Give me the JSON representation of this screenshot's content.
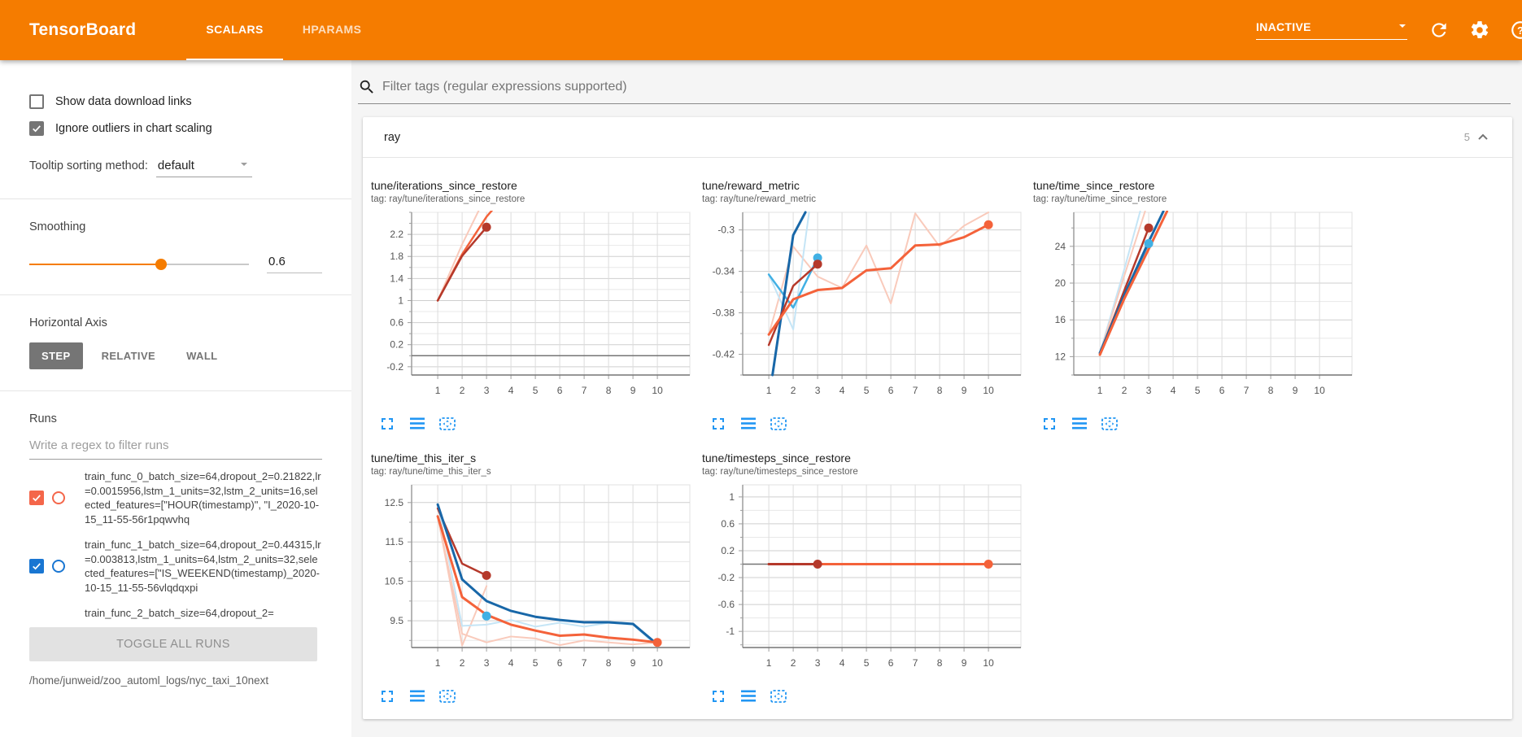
{
  "header": {
    "brand": "TensorBoard",
    "tabs": [
      {
        "label": "SCALARS",
        "active": true
      },
      {
        "label": "HPARAMS",
        "active": false
      }
    ],
    "status": "INACTIVE",
    "icons": [
      "caret-down-icon",
      "refresh-icon",
      "settings-icon",
      "help-icon"
    ],
    "colors": {
      "bar": "#f57c00",
      "active_tab": "#ffffff"
    }
  },
  "sidebar": {
    "checkboxes": [
      {
        "label": "Show data download links",
        "checked": false
      },
      {
        "label": "Ignore outliers in chart scaling",
        "checked": true
      }
    ],
    "tooltip_sort": {
      "label": "Tooltip sorting method:",
      "value": "default"
    },
    "smoothing": {
      "label": "Smoothing",
      "value": "0.6",
      "percent": 60
    },
    "horizontal_axis": {
      "label": "Horizontal Axis",
      "options": [
        "STEP",
        "RELATIVE",
        "WALL"
      ],
      "selected": "STEP"
    },
    "runs": {
      "label": "Runs",
      "filter_placeholder": "Write a regex to filter runs",
      "items": [
        {
          "color": "#f4664a",
          "checked": true,
          "partial": false,
          "text": "train_func_0_batch_size=64,dropout_2=0.21822,lr=0.0015956,lstm_1_units=32,lstm_2_units=16,selected_features=[\"HOUR(timestamp)\", \"I_2020-10-15_11-55-56r1pqwvhq"
        },
        {
          "color": "#1976d2",
          "checked": true,
          "partial": false,
          "text": "train_func_1_batch_size=64,dropout_2=0.44315,lr=0.003813,lstm_1_units=64,lstm_2_units=32,selected_features=[\"IS_WEEKEND(timestamp)_2020-10-15_11-55-56vlqdqxpi"
        },
        {
          "color": "#9e9e9e",
          "checked": false,
          "partial": true,
          "text": "train_func_2_batch_size=64,dropout_2="
        }
      ],
      "toggle_all_label": "TOGGLE ALL RUNS",
      "log_path": "/home/junweid/zoo_automl_logs/nyc_taxi_10next"
    }
  },
  "main": {
    "filter_placeholder": "Filter tags (regular expressions supported)",
    "section": {
      "title": "ray",
      "count": "5"
    },
    "chart_action_icons": [
      "fullscreen-icon",
      "flush-lines-icon",
      "fit-data-icon"
    ],
    "chart_icon_color": "#2196f3"
  },
  "chart_data": [
    {
      "type": "line",
      "title": "tune/iterations_since_restore",
      "tag": "tag: ray/tune/iterations_since_restore",
      "xlim": [
        -0.07,
        11.33
      ],
      "xticks": [
        1,
        2,
        3,
        4,
        5,
        6,
        7,
        8,
        9,
        10
      ],
      "ylim": [
        -0.35,
        2.6
      ],
      "yticks": [
        2.2,
        1.8,
        1.4,
        1,
        0.6,
        0.2,
        -0.2
      ],
      "y_minor": 0.2,
      "zero_line": 0,
      "series": [
        {
          "name": "unsmoothed",
          "color": "#f9cabb",
          "width": 2,
          "points": [
            [
              1,
              1
            ],
            [
              2,
              2.02
            ],
            [
              2.7,
              2.65
            ]
          ]
        },
        {
          "name": "train_func_0 (10 it)",
          "color": "#f4623a",
          "width": 2.5,
          "points": [
            [
              1,
              1
            ],
            [
              2,
              1.84
            ],
            [
              3,
              2.52
            ],
            [
              3.35,
              2.7
            ]
          ]
        },
        {
          "name": "train_func_0 (3 it)",
          "color": "#b5392b",
          "width": 2.5,
          "points": [
            [
              1,
              1
            ],
            [
              2,
              1.81
            ],
            [
              3,
              2.33
            ]
          ]
        }
      ],
      "dots": [
        {
          "x": 3,
          "y": 2.33,
          "color": "#b5392b"
        }
      ]
    },
    {
      "type": "line",
      "title": "tune/reward_metric",
      "tag": "tag: ray/tune/reward_metric",
      "xlim": [
        -0.07,
        11.33
      ],
      "xticks": [
        1,
        2,
        3,
        4,
        5,
        6,
        7,
        8,
        9,
        10
      ],
      "ylim": [
        -0.44,
        -0.283
      ],
      "yticks": [
        -0.3,
        -0.34,
        -0.38,
        -0.42
      ],
      "y_minor": 0.02,
      "series": [
        {
          "name": "unsmoothed orange",
          "color": "#f9cabb",
          "width": 2,
          "points": [
            [
              1,
              -0.401
            ],
            [
              2,
              -0.316
            ],
            [
              3,
              -0.345
            ],
            [
              4,
              -0.356
            ],
            [
              5,
              -0.315
            ],
            [
              6,
              -0.371
            ],
            [
              7,
              -0.284
            ],
            [
              8,
              -0.316
            ],
            [
              9,
              -0.296
            ],
            [
              10,
              -0.283
            ]
          ]
        },
        {
          "name": "unsmoothed blue",
          "color": "#c5e5f6",
          "width": 2,
          "points": [
            [
              1,
              -0.343
            ],
            [
              2,
              -0.396
            ],
            [
              2.65,
              -0.283
            ]
          ]
        },
        {
          "name": "light blue",
          "color": "#41b0e4",
          "width": 2.5,
          "points": [
            [
              1,
              -0.343
            ],
            [
              2,
              -0.375
            ],
            [
              3,
              -0.327
            ]
          ]
        },
        {
          "name": "dark blue",
          "color": "#1867a8",
          "width": 3,
          "points": [
            [
              1.15,
              -0.44
            ],
            [
              2,
              -0.305
            ],
            [
              2.5,
              -0.283
            ]
          ]
        },
        {
          "name": "dark red",
          "color": "#b5392b",
          "width": 2.5,
          "points": [
            [
              1,
              -0.411
            ],
            [
              2,
              -0.354
            ],
            [
              3,
              -0.333
            ]
          ]
        },
        {
          "name": "orange",
          "color": "#f4623a",
          "width": 3,
          "points": [
            [
              1,
              -0.401
            ],
            [
              2,
              -0.367
            ],
            [
              3,
              -0.358
            ],
            [
              4,
              -0.356
            ],
            [
              5,
              -0.339
            ],
            [
              6,
              -0.337
            ],
            [
              7,
              -0.315
            ],
            [
              8,
              -0.314
            ],
            [
              9,
              -0.307
            ],
            [
              10,
              -0.295
            ]
          ]
        }
      ],
      "dots": [
        {
          "x": 3,
          "y": -0.327,
          "color": "#41b0e4"
        },
        {
          "x": 3,
          "y": -0.333,
          "color": "#b5392b"
        },
        {
          "x": 10,
          "y": -0.295,
          "color": "#f4623a"
        }
      ]
    },
    {
      "type": "line",
      "title": "tune/time_since_restore",
      "tag": "tag: ray/tune/time_since_restore",
      "xlim": [
        -0.07,
        11.33
      ],
      "xticks": [
        1,
        2,
        3,
        4,
        5,
        6,
        7,
        8,
        9,
        10
      ],
      "ylim": [
        10,
        27.7
      ],
      "yticks": [
        24,
        20,
        16,
        12
      ],
      "y_minor": 2,
      "series": [
        {
          "name": "unsmoothed blue",
          "color": "#c5e5f6",
          "width": 2,
          "points": [
            [
              1,
              12.4
            ],
            [
              2,
              21.5
            ],
            [
              2.65,
              27.8
            ]
          ]
        },
        {
          "name": "unsmoothed orange",
          "color": "#f9cabb",
          "width": 2,
          "points": [
            [
              1,
              12.3
            ],
            [
              2,
              20.8
            ],
            [
              2.85,
              27.8
            ]
          ]
        },
        {
          "name": "light blue",
          "color": "#41b0e4",
          "width": 2.5,
          "points": [
            [
              1,
              12.4
            ],
            [
              2,
              18.6
            ],
            [
              3,
              24.3
            ]
          ]
        },
        {
          "name": "dark red",
          "color": "#b5392b",
          "width": 2.5,
          "points": [
            [
              1,
              12.3
            ],
            [
              2,
              19.2
            ],
            [
              3,
              26
            ]
          ]
        },
        {
          "name": "dark blue",
          "color": "#1867a8",
          "width": 3,
          "points": [
            [
              1,
              12.4
            ],
            [
              2,
              18.7
            ],
            [
              3,
              24.5
            ],
            [
              3.6,
              27.8
            ]
          ]
        },
        {
          "name": "orange",
          "color": "#f4623a",
          "width": 3,
          "points": [
            [
              1,
              12.2
            ],
            [
              2,
              18.3
            ],
            [
              3,
              23.7
            ],
            [
              3.75,
              27.8
            ]
          ]
        }
      ],
      "dots": [
        {
          "x": 3,
          "y": 26,
          "color": "#b5392b"
        },
        {
          "x": 3,
          "y": 24.3,
          "color": "#41b0e4"
        }
      ]
    },
    {
      "type": "line",
      "title": "tune/time_this_iter_s",
      "tag": "tag: ray/tune/time_this_iter_s",
      "xlim": [
        -0.07,
        11.33
      ],
      "xticks": [
        1,
        2,
        3,
        4,
        5,
        6,
        7,
        8,
        9,
        10
      ],
      "ylim": [
        8.82,
        12.95
      ],
      "yticks": [
        12.5,
        11.5,
        10.5,
        9.5
      ],
      "y_minor": 0.5,
      "series": [
        {
          "name": "unsmoothed orange a",
          "color": "#f9cabb",
          "width": 2,
          "points": [
            [
              1,
              12.15
            ],
            [
              2,
              8.87
            ],
            [
              3,
              10.38
            ]
          ]
        },
        {
          "name": "unsmoothed orange b",
          "color": "#f9cabb",
          "width": 2,
          "points": [
            [
              1,
              12.15
            ],
            [
              2,
              9.17
            ],
            [
              3,
              8.95
            ],
            [
              4,
              9.1
            ],
            [
              5,
              9.05
            ],
            [
              6,
              8.88
            ],
            [
              7,
              9
            ],
            [
              8,
              8.95
            ],
            [
              9,
              8.9
            ],
            [
              10,
              8.95
            ]
          ]
        },
        {
          "name": "unsmoothed blue",
          "color": "#c5e5f6",
          "width": 2,
          "points": [
            [
              1,
              12.45
            ],
            [
              2,
              9.37
            ],
            [
              3,
              9.4
            ],
            [
              4,
              9.52
            ],
            [
              5,
              9.35
            ],
            [
              6,
              9.45
            ],
            [
              7,
              9.35
            ],
            [
              8,
              9.45
            ],
            [
              9,
              9.4
            ],
            [
              10,
              8.85
            ]
          ]
        },
        {
          "name": "dark red",
          "color": "#b5392b",
          "width": 2.5,
          "points": [
            [
              1,
              12.35
            ],
            [
              2,
              10.95
            ],
            [
              3,
              10.65
            ]
          ]
        },
        {
          "name": "dark blue",
          "color": "#1867a8",
          "width": 3,
          "points": [
            [
              1,
              12.45
            ],
            [
              2,
              10.55
            ],
            [
              3,
              10
            ],
            [
              4,
              9.75
            ],
            [
              5,
              9.6
            ],
            [
              6,
              9.52
            ],
            [
              7,
              9.46
            ],
            [
              8,
              9.46
            ],
            [
              9,
              9.42
            ],
            [
              10,
              8.9
            ]
          ]
        },
        {
          "name": "orange",
          "color": "#f4623a",
          "width": 3,
          "points": [
            [
              1,
              12.15
            ],
            [
              2,
              10.1
            ],
            [
              3,
              9.65
            ],
            [
              4,
              9.4
            ],
            [
              5,
              9.25
            ],
            [
              6,
              9.12
            ],
            [
              7,
              9.15
            ],
            [
              8,
              9.07
            ],
            [
              9,
              9.02
            ],
            [
              10,
              8.95
            ]
          ]
        }
      ],
      "dots": [
        {
          "x": 3,
          "y": 10.65,
          "color": "#b5392b"
        },
        {
          "x": 3,
          "y": 9.62,
          "color": "#41b0e4"
        },
        {
          "x": 10,
          "y": 8.95,
          "color": "#f4623a"
        }
      ]
    },
    {
      "type": "line",
      "title": "tune/timesteps_since_restore",
      "tag": "tag: ray/tune/timesteps_since_restore",
      "xlim": [
        -0.07,
        11.33
      ],
      "xticks": [
        1,
        2,
        3,
        4,
        5,
        6,
        7,
        8,
        9,
        10
      ],
      "ylim": [
        -1.24,
        1.18
      ],
      "yticks": [
        1,
        0.6,
        0.2,
        -0.2,
        -0.6,
        -1
      ],
      "y_minor": 0.2,
      "zero_line": 0,
      "series": [
        {
          "name": "orange",
          "color": "#f4623a",
          "width": 3,
          "points": [
            [
              1,
              0
            ],
            [
              10,
              0
            ]
          ]
        },
        {
          "name": "dark red",
          "color": "#b5392b",
          "width": 3,
          "points": [
            [
              1,
              0
            ],
            [
              3,
              0
            ]
          ]
        }
      ],
      "dots": [
        {
          "x": 3,
          "y": 0,
          "color": "#b5392b"
        },
        {
          "x": 10,
          "y": 0,
          "color": "#f4623a"
        }
      ]
    }
  ]
}
